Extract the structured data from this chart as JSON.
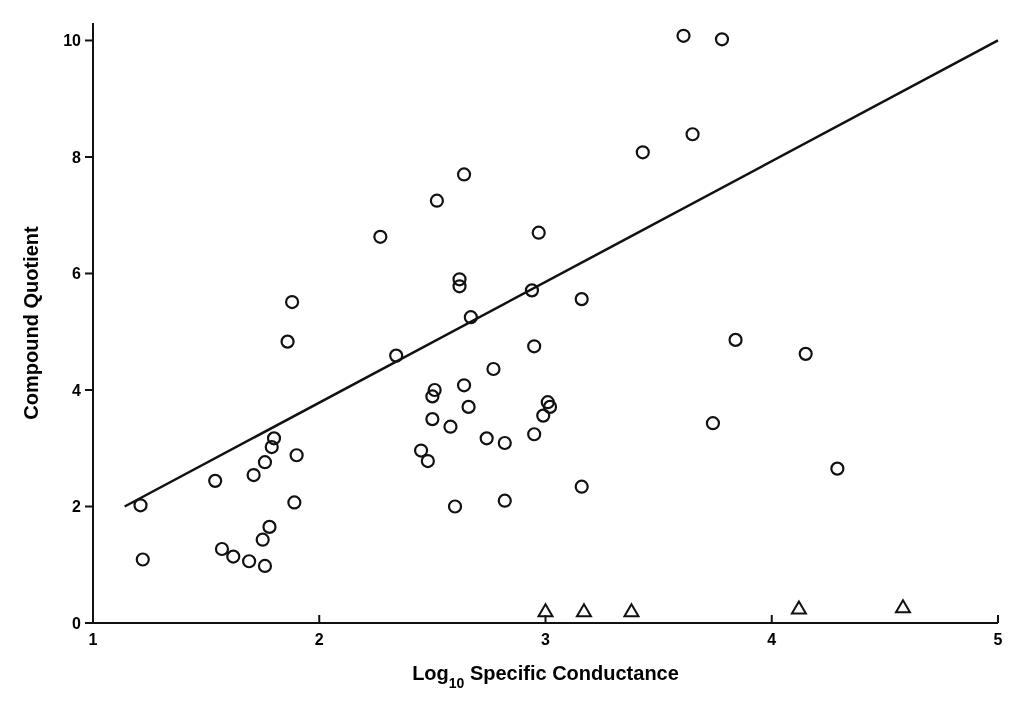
{
  "chart_data": {
    "type": "scatter",
    "xlabel": "Log$_{10}$ Specific Conductance",
    "ylabel": "Compound Quotient",
    "xlim": [
      1,
      5
    ],
    "ylim": [
      0,
      10.3
    ],
    "xticks": [
      1,
      2,
      3,
      4,
      5
    ],
    "yticks": [
      0,
      2,
      4,
      6,
      8,
      10
    ],
    "grid": false,
    "series": [
      {
        "marker": "circle",
        "color": "#111111",
        "x": [
          1.21,
          1.22,
          1.54,
          1.57,
          1.62,
          1.69,
          1.71,
          1.75,
          1.76,
          1.76,
          1.78,
          1.79,
          1.8,
          1.86,
          1.88,
          1.9,
          1.89,
          2.27,
          2.34,
          2.45,
          2.48,
          2.5,
          2.5,
          2.51,
          2.52,
          2.58,
          2.6,
          2.62,
          2.62,
          2.64,
          2.64,
          2.66,
          2.67,
          2.74,
          2.77,
          2.82,
          2.82,
          2.94,
          2.95,
          2.95,
          2.97,
          2.99,
          3.01,
          3.02,
          3.16,
          3.16,
          3.43,
          3.61,
          3.65,
          3.78,
          3.74,
          3.84,
          4.15,
          4.29
        ],
        "values": [
          2.02,
          1.09,
          2.44,
          1.27,
          1.14,
          1.06,
          2.54,
          1.43,
          2.76,
          0.98,
          1.65,
          3.02,
          3.17,
          4.83,
          5.51,
          2.88,
          2.07,
          6.63,
          4.59,
          2.96,
          2.78,
          3.5,
          3.89,
          4.0,
          7.25,
          3.37,
          2.0,
          5.9,
          5.78,
          4.08,
          7.7,
          3.71,
          5.25,
          3.17,
          4.36,
          3.09,
          2.1,
          5.71,
          3.24,
          4.75,
          6.7,
          3.56,
          3.79,
          3.71,
          2.34,
          5.56,
          8.08,
          10.08,
          8.39,
          10.02,
          3.43,
          4.86,
          4.62,
          2.65
        ]
      },
      {
        "type": "scatter",
        "marker": "triangle",
        "color": "#111111",
        "x": [
          3.0,
          3.17,
          3.38,
          4.12,
          4.58
        ],
        "values": [
          0.2,
          0.2,
          0.2,
          0.25,
          0.27
        ]
      },
      {
        "type": "line",
        "line_style": "solid",
        "color": "#111111",
        "x": [
          1.14,
          5
        ],
        "values": [
          2.0,
          10.0
        ]
      }
    ]
  }
}
